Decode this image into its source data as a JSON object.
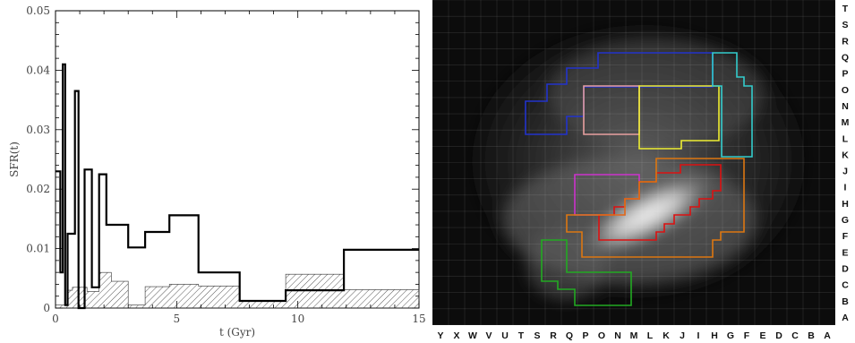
{
  "chart_data": [
    {
      "type": "line",
      "xlabel": "t (Gyr)",
      "ylabel": "SFR(t)",
      "xlim": [
        0,
        15
      ],
      "ylim": [
        0,
        0.05
      ],
      "x_ticks": [
        {
          "value": 0,
          "label": "0"
        },
        {
          "value": 5,
          "label": "5"
        },
        {
          "value": 10,
          "label": "10"
        },
        {
          "value": 15,
          "label": "15"
        }
      ],
      "y_ticks": [
        {
          "value": 0,
          "label": "0"
        },
        {
          "value": 0.01,
          "label": "0.01"
        },
        {
          "value": 0.02,
          "label": "0.02"
        },
        {
          "value": 0.03,
          "label": "0.03"
        },
        {
          "value": 0.04,
          "label": "0.04"
        },
        {
          "value": 0.05,
          "label": "0.05"
        }
      ],
      "series": [
        {
          "style": "thick-step",
          "color": "#000000",
          "x": [
            0,
            0.2,
            0.3,
            0.4,
            0.5,
            0.55,
            0.8,
            0.85,
            0.95,
            1.1,
            1.2,
            1.5,
            1.5,
            1.8,
            2.1,
            2.5,
            3.0,
            3.7,
            4.7,
            5.9,
            7.6,
            9.5,
            11.9,
            15.0
          ],
          "y": [
            0.023,
            0.006,
            0.041,
            0.0005,
            0.0125,
            0.0125,
            0.0365,
            0.0365,
            0,
            0,
            0.0233,
            0.0233,
            0.0035,
            0.0225,
            0.014,
            0.014,
            0.0102,
            0.0128,
            0.0156,
            0.006,
            0.0012,
            0.003,
            0.0098,
            0.0098
          ]
        },
        {
          "style": "hatched-area",
          "color": "#555555",
          "x": [
            0,
            0.5,
            0.7,
            1.3,
            1.8,
            2.3,
            3.0,
            3.7,
            4.7,
            5.9,
            7.6,
            9.5,
            11.9,
            15.0
          ],
          "y": [
            0.0005,
            0.003,
            0.0035,
            0.0028,
            0.006,
            0.0045,
            0.0005,
            0.0036,
            0.004,
            0.0037,
            0.0011,
            0.0057,
            0.0031,
            0.0031
          ]
        }
      ]
    },
    {
      "type": "heatmap",
      "x_labels": [
        "Y",
        "X",
        "W",
        "V",
        "U",
        "T",
        "S",
        "R",
        "Q",
        "P",
        "O",
        "N",
        "M",
        "L",
        "K",
        "J",
        "I",
        "H",
        "G",
        "F",
        "E",
        "D",
        "C",
        "B",
        "A"
      ],
      "y_labels": [
        "T",
        "S",
        "R",
        "Q",
        "P",
        "O",
        "N",
        "M",
        "L",
        "K",
        "J",
        "I",
        "H",
        "G",
        "F",
        "E",
        "D",
        "C",
        "B",
        "A"
      ],
      "colormap": "grayscale",
      "grid": true,
      "regions": [
        {
          "color": "#2233cc"
        },
        {
          "color": "#e8a0a0"
        },
        {
          "color": "#eeee33"
        },
        {
          "color": "#33cccc"
        },
        {
          "color": "#cc33cc"
        },
        {
          "color": "#dd1111"
        },
        {
          "color": "#dd7711"
        },
        {
          "color": "#22aa22"
        }
      ]
    }
  ]
}
